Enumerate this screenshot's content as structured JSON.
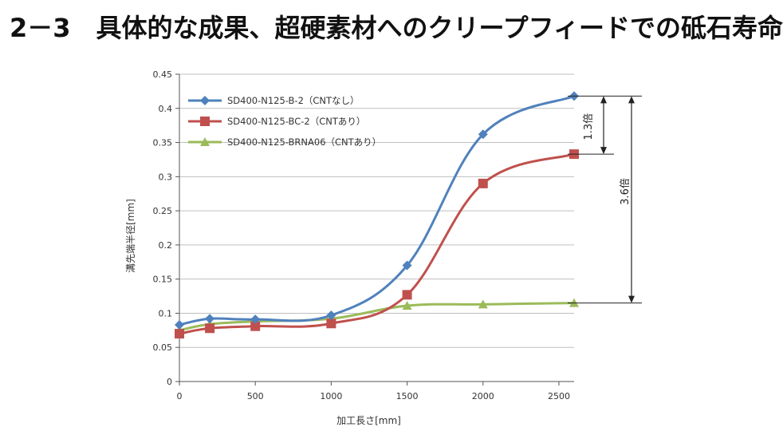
{
  "page": {
    "title": "2－3　具体的な成果、超硬素材へのクリープフィードでの砥石寿命"
  },
  "chart_data": {
    "type": "line",
    "xlabel": "加工長さ[mm]",
    "ylabel": "溝先端半径[mm]",
    "xlim": [
      0,
      2600
    ],
    "ylim": [
      0,
      0.45
    ],
    "xticks": [
      "0",
      "500",
      "1000",
      "1500",
      "2000",
      "2500"
    ],
    "yticks": [
      "0",
      "0.05",
      "0.1",
      "0.15",
      "0.2",
      "0.25",
      "0.3",
      "0.35",
      "0.4",
      "0.45"
    ],
    "grid": "horizontal",
    "legend_position": "top-left",
    "series": [
      {
        "name": "SD400-N125-B-2（CNTなし）",
        "color": "#4f81bd",
        "marker": "diamond",
        "x": [
          0,
          200,
          500,
          1000,
          1500,
          2000,
          2600
        ],
        "y": [
          0.083,
          0.092,
          0.091,
          0.097,
          0.17,
          0.362,
          0.418
        ]
      },
      {
        "name": "SD400-N125-BC-2（CNTあり）",
        "color": "#c0504d",
        "marker": "square",
        "x": [
          0,
          200,
          500,
          1000,
          1500,
          2000,
          2600
        ],
        "y": [
          0.07,
          0.078,
          0.081,
          0.085,
          0.127,
          0.29,
          0.333
        ]
      },
      {
        "name": "SD400-N125-BRNA06（CNTあり）",
        "color": "#9bbb59",
        "marker": "triangle",
        "x": [
          0,
          200,
          500,
          1000,
          1500,
          2000,
          2600
        ],
        "y": [
          0.075,
          0.084,
          0.088,
          0.092,
          0.111,
          0.113,
          0.115
        ]
      }
    ],
    "annotations": [
      {
        "text": "1.3倍",
        "from_y": 0.418,
        "to_y": 0.333
      },
      {
        "text": "3.6倍",
        "from_y": 0.418,
        "to_y": 0.115
      }
    ]
  }
}
